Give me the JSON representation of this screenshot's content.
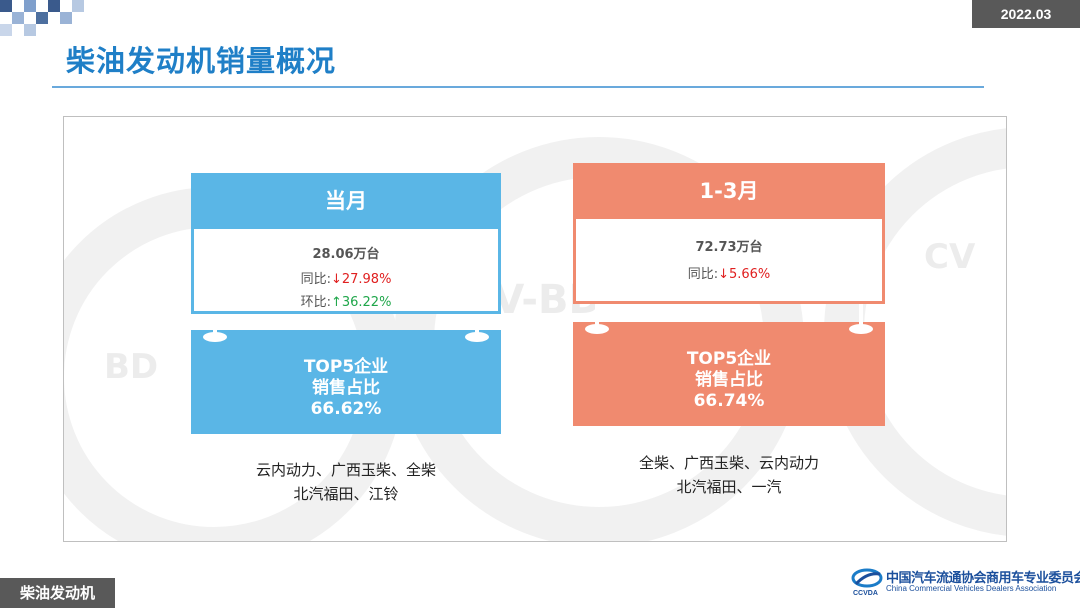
{
  "header": {
    "date": "2022.03",
    "title": "柴油发动机销量概况"
  },
  "colors": {
    "blue_accent": "#5ab6e6",
    "salmon_accent": "#f08a6f",
    "title_blue": "#1f7fc7"
  },
  "cards": {
    "left": {
      "period": "当月",
      "sales": "28.06万台",
      "yoy_label": "同比:",
      "yoy_arrow": "↓",
      "yoy_value": "27.98%",
      "mom_label": "环比:",
      "mom_arrow": "↑",
      "mom_value": "36.22%",
      "top5_line1": "TOP5企业",
      "top5_line2": "销售占比",
      "top5_value": "66.62%",
      "companies_line1": "云内动力、广西玉柴、全柴",
      "companies_line2": "北汽福田、江铃"
    },
    "right": {
      "period": "1-3月",
      "sales": "72.73万台",
      "yoy_label": "同比:",
      "yoy_arrow": "↓",
      "yoy_value": "5.66%",
      "top5_line1": "TOP5企业",
      "top5_line2": "销售占比",
      "top5_value": "66.74%",
      "companies_line1": "全柴、广西玉柴、云内动力",
      "companies_line2": "北汽福田、一汽"
    }
  },
  "footer": {
    "section": "柴油发动机",
    "logo_cn": "中国汽车流通协会商用车专业委员会",
    "logo_en": "China Commercial Vehicles Dealers Association",
    "logo_mark": "CCVDA"
  }
}
